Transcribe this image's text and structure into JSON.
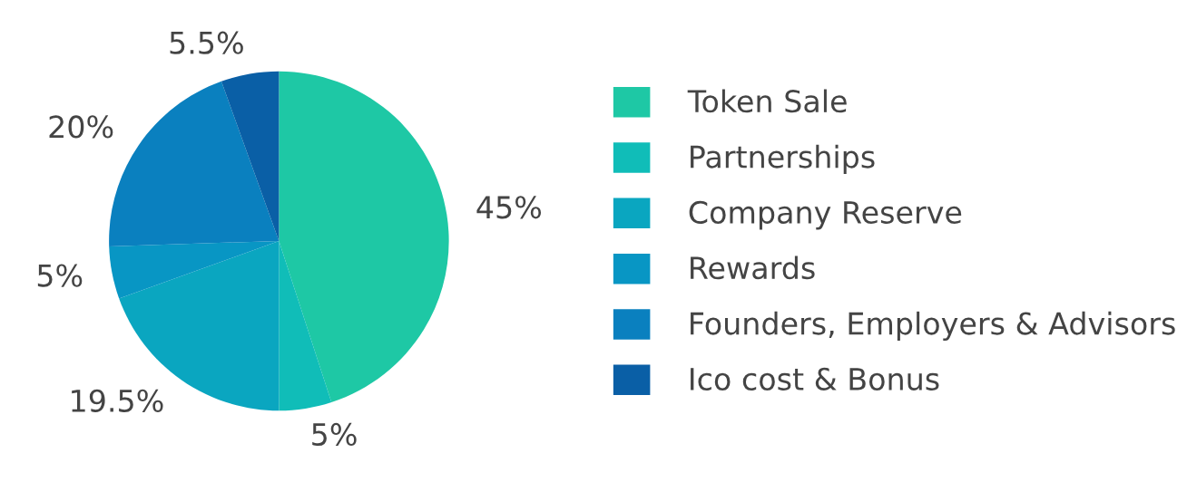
{
  "chart_data": {
    "type": "pie",
    "categories": [
      "Token Sale",
      "Partnerships",
      "Company Reserve",
      "Rewards",
      "Founders, Employers & Advisors",
      "Ico cost & Bonus"
    ],
    "values": [
      45,
      5,
      19.5,
      5,
      20,
      5.5
    ],
    "value_labels": [
      "45%",
      "5%",
      "19.5%",
      "5%",
      "20%",
      "5.5%"
    ],
    "colors": [
      "#1ec8a5",
      "#10bdb8",
      "#0aa6c0",
      "#0896c4",
      "#0a80bf",
      "#0a5fa6"
    ],
    "legend": "right"
  }
}
